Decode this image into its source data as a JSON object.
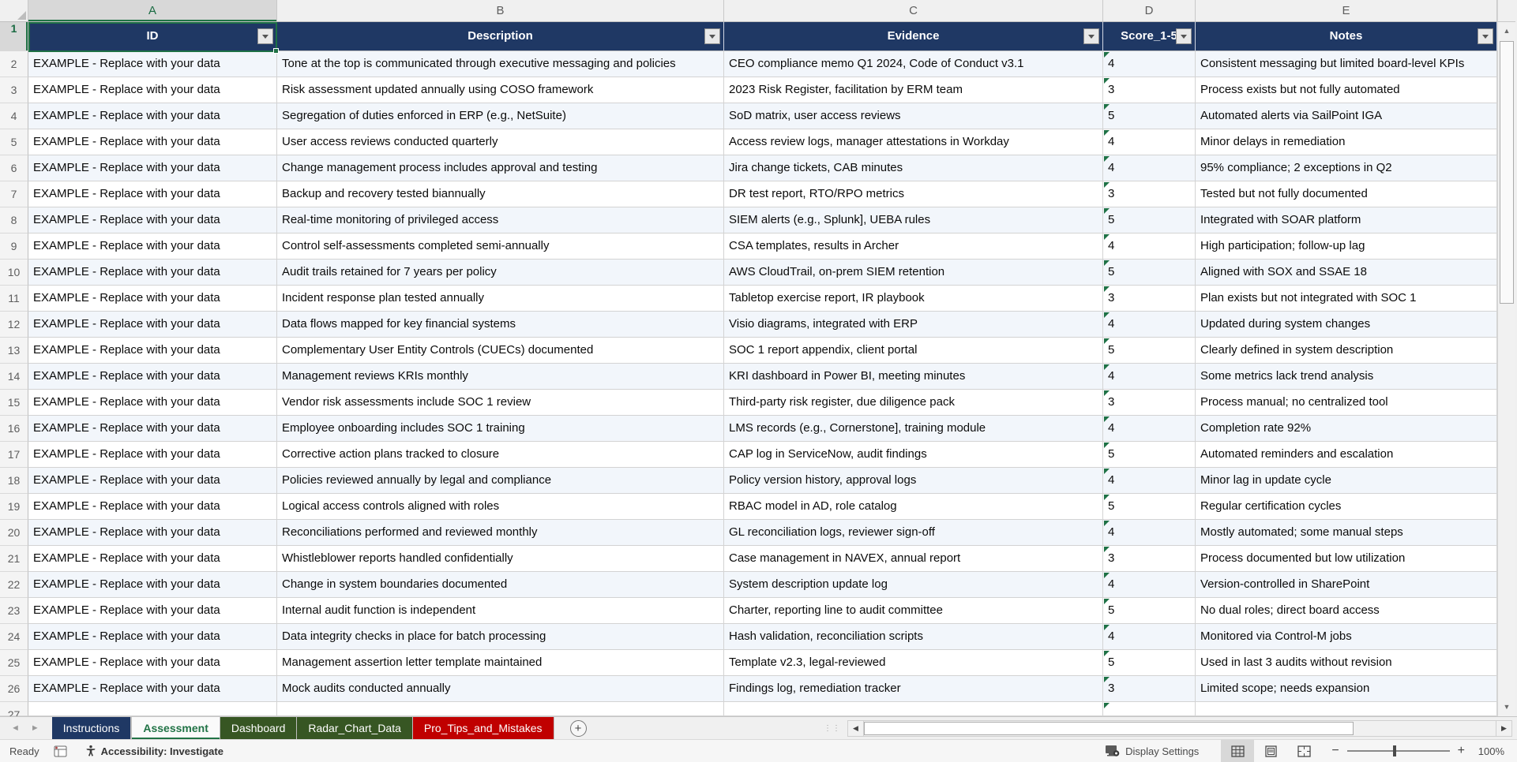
{
  "grid": {
    "column_letters": [
      "A",
      "B",
      "C",
      "D",
      "E"
    ],
    "header_row": {
      "row_number": "1",
      "cells": [
        "ID",
        "Description",
        "Evidence",
        "Score_1-5",
        "Notes"
      ]
    },
    "rows": [
      {
        "n": "2",
        "id": "EXAMPLE - Replace with your data",
        "description": "Tone at the top is communicated through executive messaging and policies",
        "evidence": "CEO compliance memo Q1 2024, Code of Conduct v3.1",
        "score": "4",
        "notes": "Consistent messaging but limited board-level KPIs"
      },
      {
        "n": "3",
        "id": "EXAMPLE - Replace with your data",
        "description": "Risk assessment updated annually using COSO framework",
        "evidence": "2023 Risk Register, facilitation by ERM team",
        "score": "3",
        "notes": "Process exists but not fully automated"
      },
      {
        "n": "4",
        "id": "EXAMPLE - Replace with your data",
        "description": "Segregation of duties enforced in ERP (e.g., NetSuite)",
        "evidence": "SoD matrix, user access reviews",
        "score": "5",
        "notes": "Automated alerts via SailPoint IGA"
      },
      {
        "n": "5",
        "id": "EXAMPLE - Replace with your data",
        "description": "User access reviews conducted quarterly",
        "evidence": "Access review logs, manager attestations in Workday",
        "score": "4",
        "notes": "Minor delays in remediation"
      },
      {
        "n": "6",
        "id": "EXAMPLE - Replace with your data",
        "description": "Change management process includes approval and testing",
        "evidence": "Jira change tickets, CAB minutes",
        "score": "4",
        "notes": "95% compliance; 2 exceptions in Q2"
      },
      {
        "n": "7",
        "id": "EXAMPLE - Replace with your data",
        "description": "Backup and recovery tested biannually",
        "evidence": "DR test report, RTO/RPO metrics",
        "score": "3",
        "notes": "Tested but not fully documented"
      },
      {
        "n": "8",
        "id": "EXAMPLE - Replace with your data",
        "description": "Real-time monitoring of privileged access",
        "evidence": "SIEM alerts (e.g., Splunk], UEBA rules",
        "score": "5",
        "notes": "Integrated with SOAR platform"
      },
      {
        "n": "9",
        "id": "EXAMPLE - Replace with your data",
        "description": "Control self-assessments completed semi-annually",
        "evidence": "CSA templates, results in Archer",
        "score": "4",
        "notes": "High participation; follow-up lag"
      },
      {
        "n": "10",
        "id": "EXAMPLE - Replace with your data",
        "description": "Audit trails retained for 7 years per policy",
        "evidence": "AWS CloudTrail, on-prem SIEM retention",
        "score": "5",
        "notes": "Aligned with SOX and SSAE 18"
      },
      {
        "n": "11",
        "id": "EXAMPLE - Replace with your data",
        "description": "Incident response plan tested annually",
        "evidence": "Tabletop exercise report, IR playbook",
        "score": "3",
        "notes": "Plan exists but not integrated with SOC 1"
      },
      {
        "n": "12",
        "id": "EXAMPLE - Replace with your data",
        "description": "Data flows mapped for key financial systems",
        "evidence": "Visio diagrams, integrated with ERP",
        "score": "4",
        "notes": "Updated during system changes"
      },
      {
        "n": "13",
        "id": "EXAMPLE - Replace with your data",
        "description": "Complementary User Entity Controls (CUECs) documented",
        "evidence": "SOC 1 report appendix, client portal",
        "score": "5",
        "notes": "Clearly defined in system description"
      },
      {
        "n": "14",
        "id": "EXAMPLE - Replace with your data",
        "description": "Management reviews KRIs monthly",
        "evidence": "KRI dashboard in Power BI, meeting minutes",
        "score": "4",
        "notes": "Some metrics lack trend analysis"
      },
      {
        "n": "15",
        "id": "EXAMPLE - Replace with your data",
        "description": "Vendor risk assessments include SOC 1 review",
        "evidence": "Third-party risk register, due diligence pack",
        "score": "3",
        "notes": "Process manual; no centralized tool"
      },
      {
        "n": "16",
        "id": "EXAMPLE - Replace with your data",
        "description": "Employee onboarding includes SOC 1 training",
        "evidence": "LMS records (e.g., Cornerstone], training module",
        "score": "4",
        "notes": "Completion rate 92%"
      },
      {
        "n": "17",
        "id": "EXAMPLE - Replace with your data",
        "description": "Corrective action plans tracked to closure",
        "evidence": "CAP log in ServiceNow, audit findings",
        "score": "5",
        "notes": "Automated reminders and escalation"
      },
      {
        "n": "18",
        "id": "EXAMPLE - Replace with your data",
        "description": "Policies reviewed annually by legal and compliance",
        "evidence": "Policy version history, approval logs",
        "score": "4",
        "notes": "Minor lag in update cycle"
      },
      {
        "n": "19",
        "id": "EXAMPLE - Replace with your data",
        "description": "Logical access controls aligned with roles",
        "evidence": "RBAC model in AD, role catalog",
        "score": "5",
        "notes": "Regular certification cycles"
      },
      {
        "n": "20",
        "id": "EXAMPLE - Replace with your data",
        "description": "Reconciliations performed and reviewed monthly",
        "evidence": "GL reconciliation logs, reviewer sign-off",
        "score": "4",
        "notes": "Mostly automated; some manual steps"
      },
      {
        "n": "21",
        "id": "EXAMPLE - Replace with your data",
        "description": "Whistleblower reports handled confidentially",
        "evidence": "Case management in NAVEX, annual report",
        "score": "3",
        "notes": "Process documented but low utilization"
      },
      {
        "n": "22",
        "id": "EXAMPLE - Replace with your data",
        "description": "Change in system boundaries documented",
        "evidence": "System description update log",
        "score": "4",
        "notes": "Version-controlled in SharePoint"
      },
      {
        "n": "23",
        "id": "EXAMPLE - Replace with your data",
        "description": "Internal audit function is independent",
        "evidence": "Charter, reporting line to audit committee",
        "score": "5",
        "notes": "No dual roles; direct board access"
      },
      {
        "n": "24",
        "id": "EXAMPLE - Replace with your data",
        "description": "Data integrity checks in place for batch processing",
        "evidence": "Hash validation, reconciliation scripts",
        "score": "4",
        "notes": "Monitored via Control-M jobs"
      },
      {
        "n": "25",
        "id": "EXAMPLE - Replace with your data",
        "description": "Management assertion letter template maintained",
        "evidence": "Template v2.3, legal-reviewed",
        "score": "5",
        "notes": "Used in last 3 audits without revision"
      },
      {
        "n": "26",
        "id": "EXAMPLE - Replace with your data",
        "description": "Mock audits conducted annually",
        "evidence": "Findings log, remediation tracker",
        "score": "3",
        "notes": "Limited scope; needs expansion"
      }
    ],
    "partial_row": {
      "n": "27"
    }
  },
  "sheet_tabs": [
    {
      "label": "Instructions",
      "style": "blue"
    },
    {
      "label": "Assessment",
      "style": "active"
    },
    {
      "label": "Dashboard",
      "style": "green"
    },
    {
      "label": "Radar_Chart_Data",
      "style": "green"
    },
    {
      "label": "Pro_Tips_and_Mistakes",
      "style": "red"
    }
  ],
  "status_bar": {
    "ready": "Ready",
    "accessibility": "Accessibility: Investigate",
    "display_settings": "Display Settings",
    "zoom": "100%"
  },
  "icons": {
    "add_sheet": "+",
    "nav_left": "◄",
    "nav_right": "►",
    "scroll_up": "▲",
    "scroll_down": "▼",
    "scroll_left": "◀",
    "scroll_right": "▶",
    "zoom_out": "−",
    "zoom_in": "+"
  },
  "colors": {
    "table_header_bg": "#1F3864",
    "accent_green": "#217346",
    "banded_row_bg": "#F2F6FB",
    "error_triangle": "#1E7145",
    "tab_blue": "#1F3864",
    "tab_green": "#375623",
    "tab_red": "#C00000"
  }
}
